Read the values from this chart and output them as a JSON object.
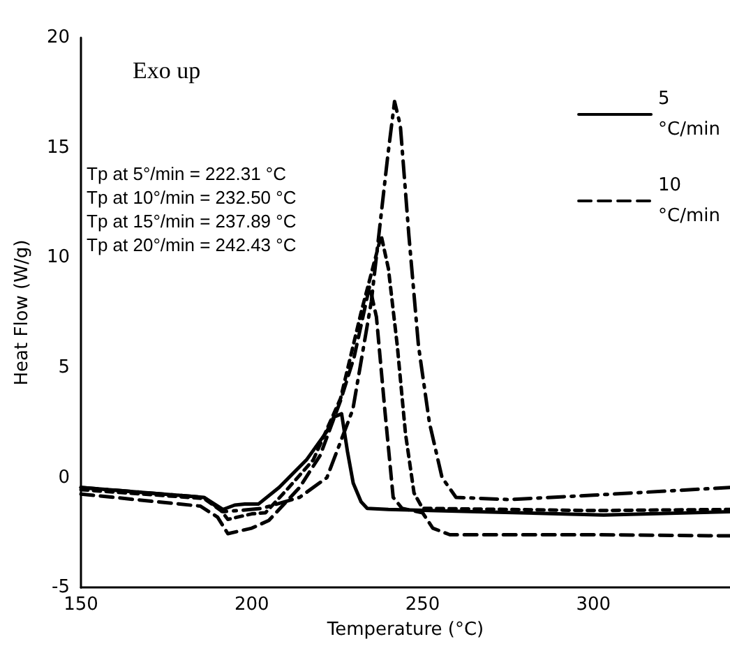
{
  "chart_data": {
    "type": "line",
    "xlabel": "Temperature (°C)",
    "ylabel": "Heat Flow (W/g)",
    "annotations": [
      "Exo up",
      "Tp at 5°/min = 222.31 °C",
      "Tp at 10°/min = 232.50 °C",
      "Tp at 15°/min = 237.89 °C",
      "Tp at 20°/min = 242.43 °C"
    ],
    "xlim": [
      150,
      340
    ],
    "xticks": [
      150,
      200,
      250,
      300
    ],
    "ylim": [
      -5,
      20
    ],
    "yticks": [
      -5,
      0,
      5,
      10,
      15,
      20
    ],
    "grid": false,
    "legend": "top right",
    "marker": "none",
    "series": [
      {
        "name": "5 °C/min",
        "color": "#000000",
        "line_style": "solid",
        "x": [
          150,
          186,
          191.6,
          195,
          198,
          202,
          208,
          216,
          222,
          224,
          226.3,
          228,
          229.7,
          232,
          233.8,
          240,
          266,
          303,
          340
        ],
        "values": [
          -0.45,
          -0.9,
          -1.45,
          -1.25,
          -1.2,
          -1.2,
          -0.45,
          0.8,
          2.1,
          2.75,
          2.9,
          1.2,
          -0.25,
          -1.1,
          -1.4,
          -1.45,
          -1.55,
          -1.7,
          -1.55
        ]
      },
      {
        "name": "10 °C/min",
        "color": "#000000",
        "line_style": "dashed",
        "x": [
          150,
          185,
          190,
          193,
          200,
          205,
          214,
          220,
          226,
          230,
          234.5,
          236.5,
          239,
          241.4,
          244,
          250,
          253,
          258,
          300,
          340
        ],
        "values": [
          -0.75,
          -1.3,
          -1.8,
          -2.55,
          -2.3,
          -1.95,
          -0.45,
          1.0,
          3.5,
          5.5,
          8.7,
          7.3,
          3,
          -0.9,
          -1.4,
          -1.6,
          -2.3,
          -2.6,
          -2.6,
          -2.65
        ]
      },
      {
        "color": "#000000",
        "line_style": "dotted",
        "x": [
          150,
          186,
          191,
          193,
          200,
          204,
          210,
          218,
          226,
          232,
          237.9,
          240,
          242.6,
          245,
          247.5,
          250,
          300,
          340
        ],
        "values": [
          -0.55,
          -0.95,
          -1.5,
          -1.9,
          -1.65,
          -1.6,
          -0.6,
          0.8,
          3.6,
          7.5,
          11,
          9.5,
          6,
          2,
          -0.7,
          -1.4,
          -1.5,
          -1.45
        ]
      },
      {
        "color": "#000000",
        "line_style": "dashdot",
        "x": [
          150,
          186,
          191.6,
          196,
          203,
          214,
          222,
          229.6,
          235,
          239.8,
          241.8,
          243.5,
          246,
          248.8,
          252,
          255.7,
          259.8,
          275,
          300,
          340
        ],
        "values": [
          -0.45,
          -0.9,
          -1.55,
          -1.5,
          -1.4,
          -0.9,
          0,
          3.1,
          8,
          14.6,
          17.1,
          16,
          11,
          6,
          2.5,
          0,
          -0.9,
          -1.0,
          -0.8,
          -0.45
        ]
      }
    ]
  }
}
